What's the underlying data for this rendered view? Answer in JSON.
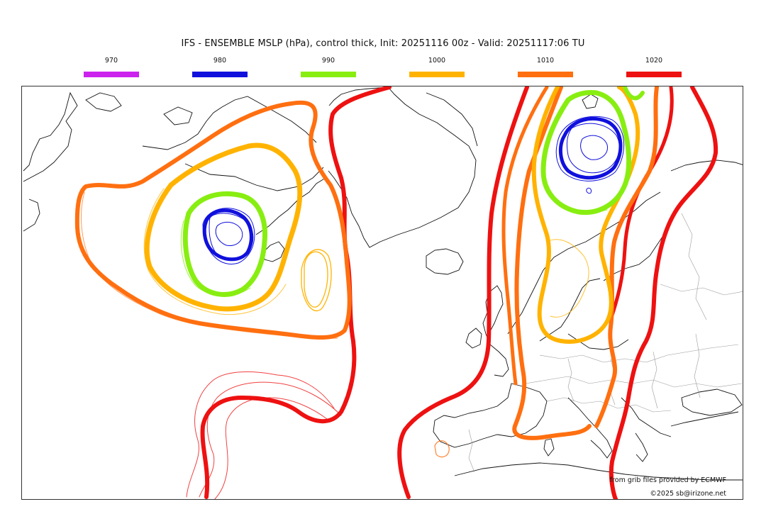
{
  "title": "IFS - ENSEMBLE MSLP (hPa), control thick, Init: 20251116 00z - Valid: 20251117:06 TU",
  "legend": [
    {
      "label": "970",
      "color": "#cc22ee"
    },
    {
      "label": "980",
      "color": "#1010dd"
    },
    {
      "label": "990",
      "color": "#88ee11"
    },
    {
      "label": "1000",
      "color": "#ffb300"
    },
    {
      "label": "1010",
      "color": "#ff6f10"
    },
    {
      "label": "1020",
      "color": "#ee1111"
    }
  ],
  "credits": {
    "source": "from grib files provided by ECMWF",
    "copyright": "©2025 sb@irizone.net"
  }
}
